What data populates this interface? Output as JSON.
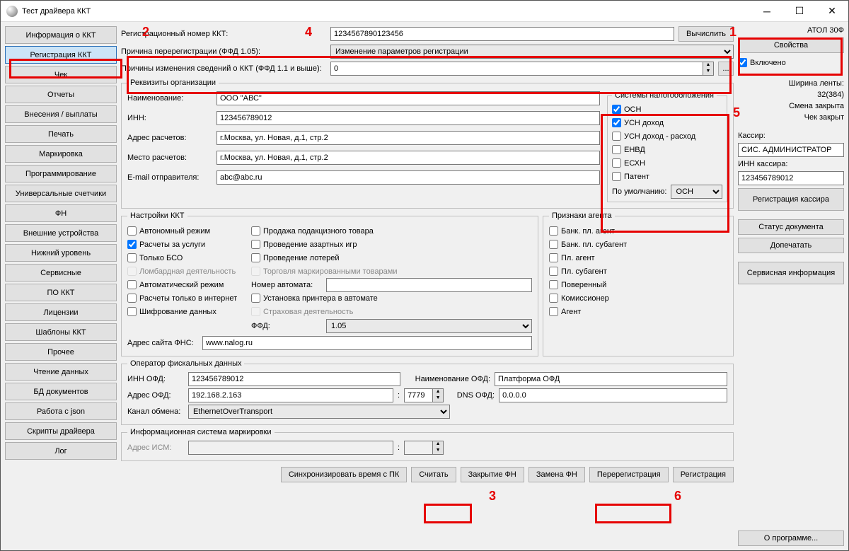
{
  "window": {
    "title": "Тест драйвера ККТ"
  },
  "markers": {
    "1": "1",
    "2": "2",
    "3": "3",
    "4": "4",
    "5": "5",
    "6": "6"
  },
  "nav": {
    "items": [
      "Информация о ККТ",
      "Регистрация ККТ",
      "Чек",
      "Отчеты",
      "Внесения / выплаты",
      "Печать",
      "Маркировка",
      "Программирование",
      "Универсальные счетчики",
      "ФН",
      "Внешние устройства",
      "Нижний уровень",
      "Сервисные",
      "ПО ККТ",
      "Лицензии",
      "Шаблоны ККТ",
      "Прочее",
      "Чтение данных",
      "БД документов",
      "Работа с json",
      "Скрипты драйвера",
      "Лог"
    ],
    "activeIndex": 1
  },
  "top": {
    "reg_label": "Регистрационный номер ККТ:",
    "reg_value": "1234567890123456",
    "calc": "Вычислить",
    "reason_label": "Причина перерегистрации (ФФД 1.05):",
    "reason_value": "Изменение параметров регистрации",
    "reason2_label": "Причины изменения сведений о ККТ (ФФД 1.1 и выше):",
    "reason2_value": "0",
    "more": "..."
  },
  "org": {
    "legend": "Реквизиты организации",
    "name_l": "Наименование:",
    "name_v": "ООО \"АВС\"",
    "inn_l": "ИНН:",
    "inn_v": "123456789012",
    "addr_l": "Адрес расчетов:",
    "addr_v": "г.Москва, ул. Новая, д.1, стр.2",
    "place_l": "Место расчетов:",
    "place_v": "г.Москва, ул. Новая, д.1, стр.2",
    "email_l": "E-mail отправителя:",
    "email_v": "abc@abc.ru"
  },
  "tax": {
    "legend": "Системы налогообложения",
    "items": [
      {
        "label": "ОСН",
        "checked": true
      },
      {
        "label": "УСН доход",
        "checked": true
      },
      {
        "label": "УСН доход - расход",
        "checked": false
      },
      {
        "label": "ЕНВД",
        "checked": false
      },
      {
        "label": "ЕСХН",
        "checked": false
      },
      {
        "label": "Патент",
        "checked": false
      }
    ],
    "default_l": "По умолчанию:",
    "default_v": "ОСН"
  },
  "kkt": {
    "legend": "Настройки ККТ",
    "col1": [
      {
        "label": "Автономный режим",
        "checked": false,
        "disabled": false
      },
      {
        "label": "Расчеты за услуги",
        "checked": true,
        "disabled": false
      },
      {
        "label": "Только БСО",
        "checked": false,
        "disabled": false
      },
      {
        "label": "Ломбардная деятельность",
        "checked": false,
        "disabled": true
      },
      {
        "label": "Автоматический режим",
        "checked": false,
        "disabled": false
      },
      {
        "label": "Расчеты только в интернет",
        "checked": false,
        "disabled": false
      },
      {
        "label": "Шифрование данных",
        "checked": false,
        "disabled": false
      }
    ],
    "col2": [
      {
        "label": "Продажа подакцизного товара",
        "checked": false,
        "disabled": false
      },
      {
        "label": "Проведение азартных игр",
        "checked": false,
        "disabled": false
      },
      {
        "label": "Проведение лотерей",
        "checked": false,
        "disabled": false
      },
      {
        "label": "Торговля маркированными товарами",
        "checked": false,
        "disabled": true
      }
    ],
    "machine_l": "Номер автомата:",
    "machine_v": "",
    "printer_l": "Установка принтера в автомате",
    "printer_c": false,
    "insurance_l": "Страховая деятельность",
    "insurance_disabled": true,
    "ffd_l": "ФФД:",
    "ffd_v": "1.05",
    "fns_l": "Адрес сайта ФНС:",
    "fns_v": "www.nalog.ru"
  },
  "agent": {
    "legend": "Признаки агента",
    "items": [
      {
        "label": "Банк. пл. агент",
        "checked": false
      },
      {
        "label": "Банк. пл. субагент",
        "checked": false
      },
      {
        "label": "Пл. агент",
        "checked": false
      },
      {
        "label": "Пл. субагент",
        "checked": false
      },
      {
        "label": "Поверенный",
        "checked": false
      },
      {
        "label": "Комиссионер",
        "checked": false
      },
      {
        "label": "Агент",
        "checked": false
      }
    ]
  },
  "ofd": {
    "legend": "Оператор фискальных данных",
    "inn_l": "ИНН ОФД:",
    "inn_v": "123456789012",
    "name_l": "Наименование ОФД:",
    "name_v": "Платформа ОФД",
    "addr_l": "Адрес ОФД:",
    "addr_v": "192.168.2.163",
    "port_v": "7779",
    "dns_l": "DNS ОФД:",
    "dns_v": "0.0.0.0",
    "chan_l": "Канал обмена:",
    "chan_v": "EthernetOverTransport"
  },
  "ism": {
    "legend": "Информационная система маркировки",
    "addr_l": "Адрес ИСМ:",
    "addr_v": "",
    "port_v": ""
  },
  "bottom": {
    "sync": "Синхронизировать время с ПК",
    "read": "Считать",
    "closefn": "Закрытие ФН",
    "changefn": "Замена ФН",
    "rereg": "Перерегистрация",
    "reg": "Регистрация"
  },
  "right": {
    "device": "АТОЛ 30Ф",
    "props": "Свойства",
    "enabled_l": "Включено",
    "tape_l": "Ширина ленты:",
    "tape_v": "32(384)",
    "shift": "Смена закрыта",
    "chk": "Чек закрыт",
    "cashier_l": "Кассир:",
    "cashier_v": "СИС. АДМИНИСТРАТОР",
    "cashier_inn_l": "ИНН кассира:",
    "cashier_inn_v": "123456789012",
    "reg_cashier": "Регистрация кассира",
    "doc_status": "Статус документа",
    "reprint": "Допечатать",
    "service": "Сервисная информация",
    "about": "О программе..."
  }
}
